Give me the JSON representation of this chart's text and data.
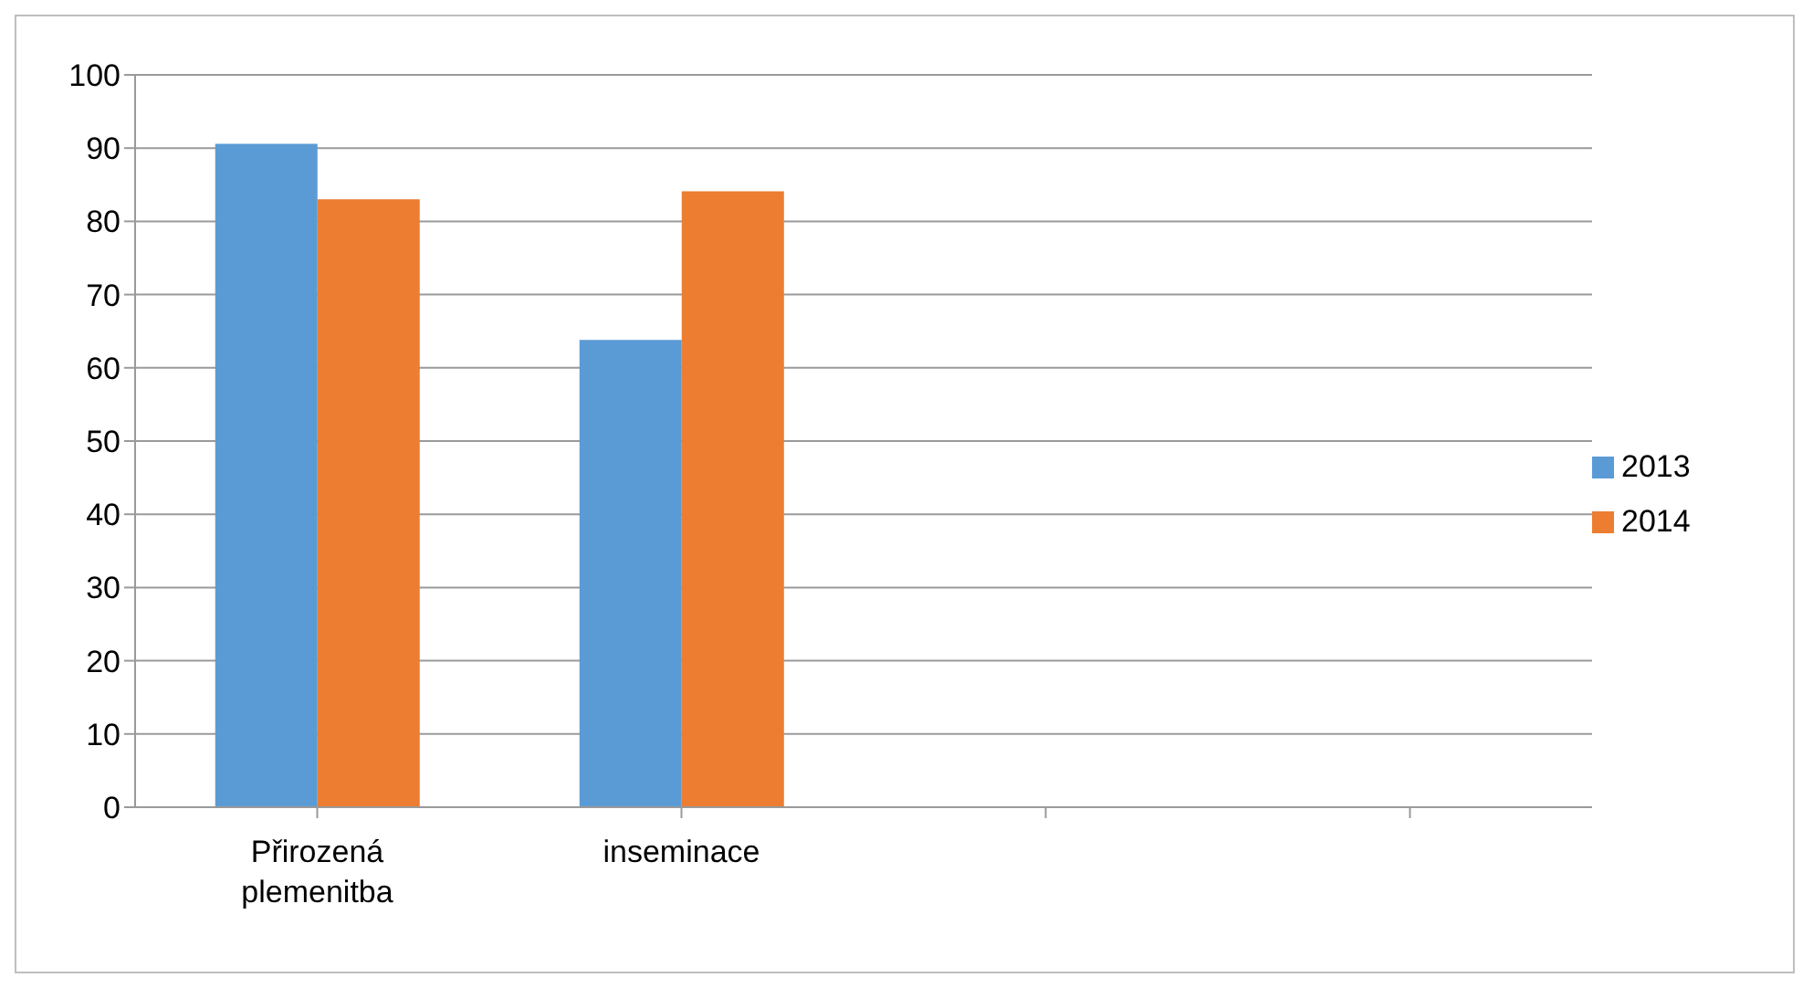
{
  "chart_data": {
    "type": "bar",
    "categories": [
      "Přirozená plemenitba",
      "inseminace",
      null,
      null
    ],
    "series": [
      {
        "name": "2013",
        "color": "#5b9bd5",
        "values": [
          90.6,
          63.8,
          null,
          null
        ]
      },
      {
        "name": "2014",
        "color": "#ed7d31",
        "values": [
          83,
          84.1,
          null,
          null
        ]
      }
    ],
    "ylim": [
      0,
      100
    ],
    "yticks": [
      0,
      10,
      20,
      30,
      40,
      50,
      60,
      70,
      80,
      90,
      100
    ],
    "grid": "y",
    "legend": "right"
  }
}
